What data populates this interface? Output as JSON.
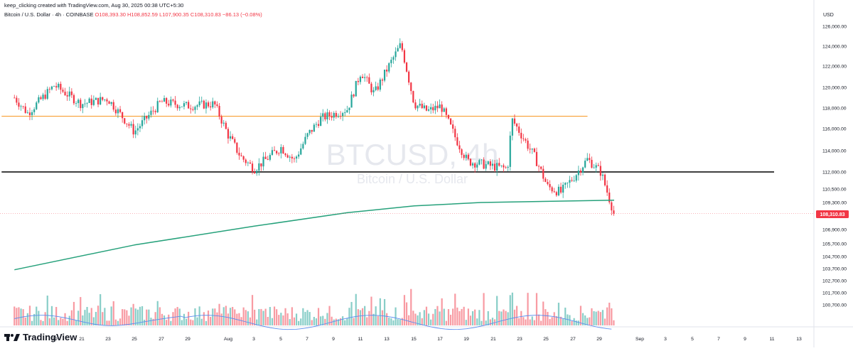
{
  "header": {
    "credit": "keep_clicking created with TradingView.com, Aug 30, 2025 00:38 UTC+5:30",
    "symbol": "Bitcoin / U.S. Dollar · 4h · COINBASE",
    "open": "O108,393.30",
    "high": "H108,852.59",
    "low": "L107,900.35",
    "close": "C108,310.83",
    "change": "−86.13 (−0.08%)"
  },
  "watermark": {
    "ticker": "BTCUSD, 4h",
    "name": "Bitcoin / U.S. Dollar"
  },
  "brand": {
    "logo_icon": "tradingview-logo-icon",
    "name": "TradingView"
  },
  "colors": {
    "up": "#26a69a",
    "down": "#f23645",
    "ma": "#26a17b",
    "orange_line": "#f7931a",
    "black_line": "#000000",
    "volume_ma": "#5b8def"
  },
  "chart_data": {
    "type": "candlestick",
    "currency_label": "USD",
    "price_axis_ticks": [
      "126,000.00",
      "124,000.00",
      "122,000.00",
      "120,000.00",
      "118,000.00",
      "116,000.00",
      "114,000.00",
      "112,000.00",
      "110,500.00",
      "109,300.00",
      "106,900.00",
      "105,700.00",
      "104,700.00",
      "103,700.00",
      "102,700.00",
      "101,700.00",
      "100,700.00"
    ],
    "price_tick_values": [
      126000,
      124000,
      122000,
      120000,
      118000,
      116000,
      114000,
      112000,
      110500,
      109300,
      106900,
      105700,
      104700,
      103700,
      102700,
      101700,
      100700
    ],
    "time_axis_labels": [
      "17",
      "19",
      "21",
      "23",
      "25",
      "27",
      "29",
      "Aug",
      "3",
      "5",
      "7",
      "9",
      "11",
      "13",
      "15",
      "17",
      "19",
      "21",
      "23",
      "25",
      "27",
      "29",
      "Sep",
      "3",
      "5",
      "7",
      "9",
      "11",
      "13"
    ],
    "last_price": 108310.83,
    "last_price_label": "108,310.83",
    "horizontal_lines": [
      {
        "price": 117200,
        "color": "orange",
        "from": "Jul 16",
        "to": "Aug 28"
      },
      {
        "price": 112000,
        "color": "black",
        "from": "Jul 16",
        "to": "Sep 11"
      }
    ],
    "price_path": [
      {
        "date": "Jul 16",
        "price": 119000
      },
      {
        "date": "Jul 17",
        "price": 117500
      },
      {
        "date": "Jul 19",
        "price": 120200
      },
      {
        "date": "Jul 21",
        "price": 118400
      },
      {
        "date": "Jul 23",
        "price": 118900
      },
      {
        "date": "Jul 25",
        "price": 115700
      },
      {
        "date": "Jul 27",
        "price": 118600
      },
      {
        "date": "Jul 29",
        "price": 118200
      },
      {
        "date": "Jul 31",
        "price": 118400
      },
      {
        "date": "Aug 1",
        "price": 115500
      },
      {
        "date": "Aug 2",
        "price": 113400
      },
      {
        "date": "Aug 3",
        "price": 112300
      },
      {
        "date": "Aug 5",
        "price": 114300
      },
      {
        "date": "Aug 6",
        "price": 113100
      },
      {
        "date": "Aug 7",
        "price": 115400
      },
      {
        "date": "Aug 8",
        "price": 117000
      },
      {
        "date": "Aug 10",
        "price": 117900
      },
      {
        "date": "Aug 11",
        "price": 121500
      },
      {
        "date": "Aug 12",
        "price": 119400
      },
      {
        "date": "Aug 13",
        "price": 121800
      },
      {
        "date": "Aug 14",
        "price": 124200
      },
      {
        "date": "Aug 15",
        "price": 118400
      },
      {
        "date": "Aug 16",
        "price": 117700
      },
      {
        "date": "Aug 17",
        "price": 118200
      },
      {
        "date": "Aug 18",
        "price": 115400
      },
      {
        "date": "Aug 19",
        "price": 113000
      },
      {
        "date": "Aug 21",
        "price": 112500
      },
      {
        "date": "Aug 22",
        "price": 112300
      },
      {
        "date": "Aug 22",
        "price": 116900
      },
      {
        "date": "Aug 24",
        "price": 113500
      },
      {
        "date": "Aug 25",
        "price": 110700
      },
      {
        "date": "Aug 26",
        "price": 110200
      },
      {
        "date": "Aug 27",
        "price": 111600
      },
      {
        "date": "Aug 28",
        "price": 113200
      },
      {
        "date": "Aug 29",
        "price": 112000
      },
      {
        "date": "Aug 30",
        "price": 108310.83
      }
    ],
    "moving_average": [
      {
        "date": "Jul 16",
        "price": 103600
      },
      {
        "date": "Jul 25",
        "price": 105600
      },
      {
        "date": "Aug 3",
        "price": 107200
      },
      {
        "date": "Aug 10",
        "price": 108400
      },
      {
        "date": "Aug 15",
        "price": 109000
      },
      {
        "date": "Aug 20",
        "price": 109300
      },
      {
        "date": "Aug 25",
        "price": 109400
      },
      {
        "date": "Aug 30",
        "price": 109500
      }
    ],
    "volume_ma_level": 0.12,
    "grid": false
  }
}
